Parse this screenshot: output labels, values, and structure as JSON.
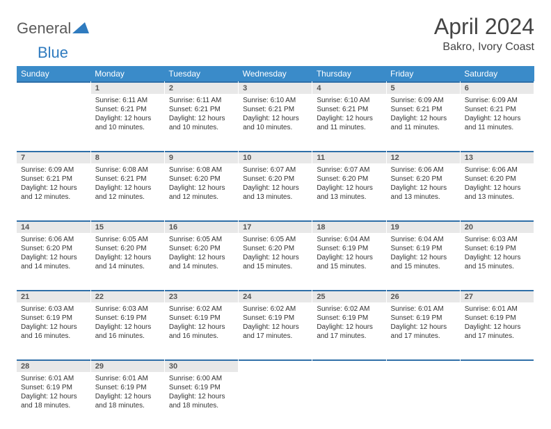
{
  "logo": {
    "general": "General",
    "blue": "Blue"
  },
  "title": "April 2024",
  "location": "Bakro, Ivory Coast",
  "colors": {
    "header_bg": "#3a8bc9",
    "header_text": "#ffffff",
    "daynum_bg": "#e8e8e8",
    "daynum_border": "#2f6fa8",
    "body_text": "#333333",
    "logo_gray": "#5a5a5a",
    "logo_blue": "#2f7bbf"
  },
  "weekdays": [
    "Sunday",
    "Monday",
    "Tuesday",
    "Wednesday",
    "Thursday",
    "Friday",
    "Saturday"
  ],
  "first_weekday_index": 1,
  "days": [
    {
      "n": "1",
      "sunrise": "Sunrise: 6:11 AM",
      "sunset": "Sunset: 6:21 PM",
      "daylight": "Daylight: 12 hours and 10 minutes."
    },
    {
      "n": "2",
      "sunrise": "Sunrise: 6:11 AM",
      "sunset": "Sunset: 6:21 PM",
      "daylight": "Daylight: 12 hours and 10 minutes."
    },
    {
      "n": "3",
      "sunrise": "Sunrise: 6:10 AM",
      "sunset": "Sunset: 6:21 PM",
      "daylight": "Daylight: 12 hours and 10 minutes."
    },
    {
      "n": "4",
      "sunrise": "Sunrise: 6:10 AM",
      "sunset": "Sunset: 6:21 PM",
      "daylight": "Daylight: 12 hours and 11 minutes."
    },
    {
      "n": "5",
      "sunrise": "Sunrise: 6:09 AM",
      "sunset": "Sunset: 6:21 PM",
      "daylight": "Daylight: 12 hours and 11 minutes."
    },
    {
      "n": "6",
      "sunrise": "Sunrise: 6:09 AM",
      "sunset": "Sunset: 6:21 PM",
      "daylight": "Daylight: 12 hours and 11 minutes."
    },
    {
      "n": "7",
      "sunrise": "Sunrise: 6:09 AM",
      "sunset": "Sunset: 6:21 PM",
      "daylight": "Daylight: 12 hours and 12 minutes."
    },
    {
      "n": "8",
      "sunrise": "Sunrise: 6:08 AM",
      "sunset": "Sunset: 6:21 PM",
      "daylight": "Daylight: 12 hours and 12 minutes."
    },
    {
      "n": "9",
      "sunrise": "Sunrise: 6:08 AM",
      "sunset": "Sunset: 6:20 PM",
      "daylight": "Daylight: 12 hours and 12 minutes."
    },
    {
      "n": "10",
      "sunrise": "Sunrise: 6:07 AM",
      "sunset": "Sunset: 6:20 PM",
      "daylight": "Daylight: 12 hours and 13 minutes."
    },
    {
      "n": "11",
      "sunrise": "Sunrise: 6:07 AM",
      "sunset": "Sunset: 6:20 PM",
      "daylight": "Daylight: 12 hours and 13 minutes."
    },
    {
      "n": "12",
      "sunrise": "Sunrise: 6:06 AM",
      "sunset": "Sunset: 6:20 PM",
      "daylight": "Daylight: 12 hours and 13 minutes."
    },
    {
      "n": "13",
      "sunrise": "Sunrise: 6:06 AM",
      "sunset": "Sunset: 6:20 PM",
      "daylight": "Daylight: 12 hours and 13 minutes."
    },
    {
      "n": "14",
      "sunrise": "Sunrise: 6:06 AM",
      "sunset": "Sunset: 6:20 PM",
      "daylight": "Daylight: 12 hours and 14 minutes."
    },
    {
      "n": "15",
      "sunrise": "Sunrise: 6:05 AM",
      "sunset": "Sunset: 6:20 PM",
      "daylight": "Daylight: 12 hours and 14 minutes."
    },
    {
      "n": "16",
      "sunrise": "Sunrise: 6:05 AM",
      "sunset": "Sunset: 6:20 PM",
      "daylight": "Daylight: 12 hours and 14 minutes."
    },
    {
      "n": "17",
      "sunrise": "Sunrise: 6:05 AM",
      "sunset": "Sunset: 6:20 PM",
      "daylight": "Daylight: 12 hours and 15 minutes."
    },
    {
      "n": "18",
      "sunrise": "Sunrise: 6:04 AM",
      "sunset": "Sunset: 6:19 PM",
      "daylight": "Daylight: 12 hours and 15 minutes."
    },
    {
      "n": "19",
      "sunrise": "Sunrise: 6:04 AM",
      "sunset": "Sunset: 6:19 PM",
      "daylight": "Daylight: 12 hours and 15 minutes."
    },
    {
      "n": "20",
      "sunrise": "Sunrise: 6:03 AM",
      "sunset": "Sunset: 6:19 PM",
      "daylight": "Daylight: 12 hours and 15 minutes."
    },
    {
      "n": "21",
      "sunrise": "Sunrise: 6:03 AM",
      "sunset": "Sunset: 6:19 PM",
      "daylight": "Daylight: 12 hours and 16 minutes."
    },
    {
      "n": "22",
      "sunrise": "Sunrise: 6:03 AM",
      "sunset": "Sunset: 6:19 PM",
      "daylight": "Daylight: 12 hours and 16 minutes."
    },
    {
      "n": "23",
      "sunrise": "Sunrise: 6:02 AM",
      "sunset": "Sunset: 6:19 PM",
      "daylight": "Daylight: 12 hours and 16 minutes."
    },
    {
      "n": "24",
      "sunrise": "Sunrise: 6:02 AM",
      "sunset": "Sunset: 6:19 PM",
      "daylight": "Daylight: 12 hours and 17 minutes."
    },
    {
      "n": "25",
      "sunrise": "Sunrise: 6:02 AM",
      "sunset": "Sunset: 6:19 PM",
      "daylight": "Daylight: 12 hours and 17 minutes."
    },
    {
      "n": "26",
      "sunrise": "Sunrise: 6:01 AM",
      "sunset": "Sunset: 6:19 PM",
      "daylight": "Daylight: 12 hours and 17 minutes."
    },
    {
      "n": "27",
      "sunrise": "Sunrise: 6:01 AM",
      "sunset": "Sunset: 6:19 PM",
      "daylight": "Daylight: 12 hours and 17 minutes."
    },
    {
      "n": "28",
      "sunrise": "Sunrise: 6:01 AM",
      "sunset": "Sunset: 6:19 PM",
      "daylight": "Daylight: 12 hours and 18 minutes."
    },
    {
      "n": "29",
      "sunrise": "Sunrise: 6:01 AM",
      "sunset": "Sunset: 6:19 PM",
      "daylight": "Daylight: 12 hours and 18 minutes."
    },
    {
      "n": "30",
      "sunrise": "Sunrise: 6:00 AM",
      "sunset": "Sunset: 6:19 PM",
      "daylight": "Daylight: 12 hours and 18 minutes."
    }
  ]
}
